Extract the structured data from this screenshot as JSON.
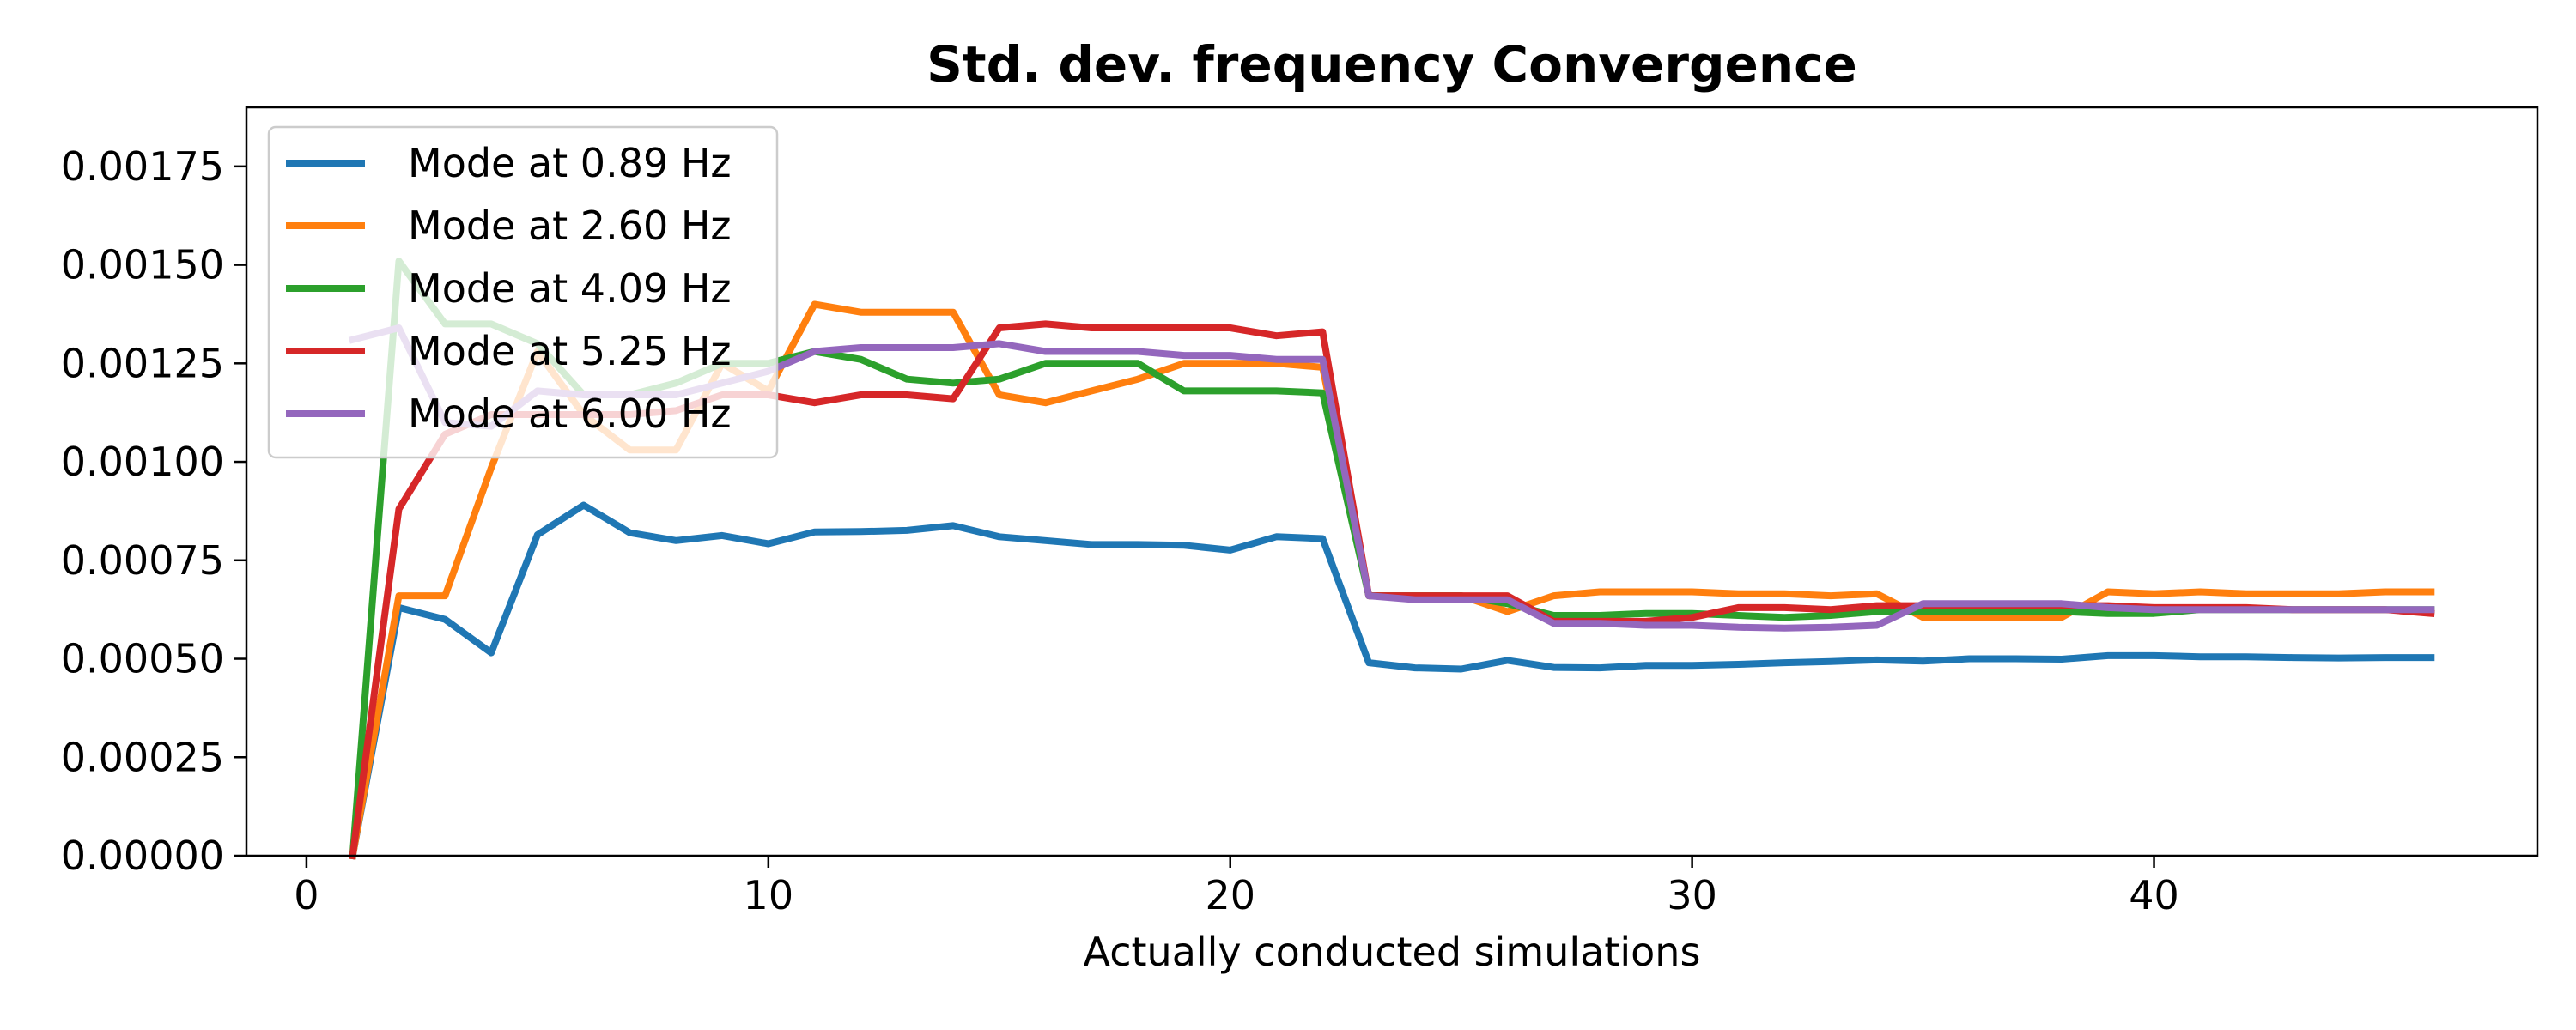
{
  "chart_data": {
    "type": "line",
    "title": "Std. dev. frequency Convergence",
    "xlabel": "Actually conducted simulations",
    "ylabel": "",
    "xlim": [
      -1.3,
      48.3
    ],
    "ylim": [
      0,
      0.0019
    ],
    "xticks": [
      0,
      10,
      20,
      30,
      40
    ],
    "yticks": [
      0.0,
      0.00025,
      0.0005,
      0.00075,
      0.001,
      0.00125,
      0.0015,
      0.00175
    ],
    "xtick_labels": [
      "0",
      "10",
      "20",
      "30",
      "40"
    ],
    "ytick_labels": [
      "0.00000",
      "0.00025",
      "0.00050",
      "0.00075",
      "0.00100",
      "0.00125",
      "0.00150",
      "0.00175"
    ],
    "grid": false,
    "legend_position": "upper-left",
    "x": [
      1,
      2,
      3,
      4,
      5,
      6,
      7,
      8,
      9,
      10,
      11,
      12,
      13,
      14,
      15,
      16,
      17,
      18,
      19,
      20,
      21,
      22,
      23,
      24,
      25,
      26,
      27,
      28,
      29,
      30,
      31,
      32,
      33,
      34,
      35,
      36,
      37,
      38,
      39,
      40,
      41,
      42,
      43,
      44,
      45,
      46
    ],
    "series": [
      {
        "name": "Mode at 0.89 Hz",
        "color": "#1f77b4",
        "values": [
          0.0,
          0.00063,
          0.0006,
          0.000515,
          0.000815,
          0.00089,
          0.00082,
          0.0008,
          0.000813,
          0.000792,
          0.000822,
          0.000823,
          0.000826,
          0.000838,
          0.00081,
          0.0008,
          0.00079,
          0.00079,
          0.000788,
          0.000776,
          0.00081,
          0.000805,
          0.00049,
          0.000477,
          0.000474,
          0.000496,
          0.000478,
          0.000477,
          0.000483,
          0.000483,
          0.000486,
          0.00049,
          0.000493,
          0.000497,
          0.000494,
          0.0005,
          0.0005,
          0.000499,
          0.000508,
          0.000508,
          0.000505,
          0.000505,
          0.000503,
          0.000502,
          0.000503,
          0.000503
        ]
      },
      {
        "name": "Mode at 2.60 Hz",
        "color": "#ff7f0e",
        "values": [
          0.0,
          0.00066,
          0.00066,
          0.000985,
          0.00128,
          0.00112,
          0.00103,
          0.00103,
          0.00125,
          0.00118,
          0.0014,
          0.00138,
          0.00138,
          0.00138,
          0.00117,
          0.00115,
          0.00118,
          0.00121,
          0.00125,
          0.00125,
          0.00125,
          0.00124,
          0.00066,
          0.00066,
          0.00066,
          0.00062,
          0.00066,
          0.00067,
          0.00067,
          0.00067,
          0.000665,
          0.000665,
          0.00066,
          0.000665,
          0.000605,
          0.000605,
          0.000605,
          0.000605,
          0.00067,
          0.000665,
          0.00067,
          0.000665,
          0.000665,
          0.000665,
          0.00067,
          0.00067
        ]
      },
      {
        "name": "Mode at 4.09 Hz",
        "color": "#2ca02c",
        "values": [
          0.0,
          0.00151,
          0.00135,
          0.00135,
          0.0013,
          0.00117,
          0.00117,
          0.0012,
          0.00125,
          0.00125,
          0.00128,
          0.00126,
          0.00121,
          0.0012,
          0.00121,
          0.00125,
          0.00125,
          0.00125,
          0.00118,
          0.00118,
          0.00118,
          0.001175,
          0.00066,
          0.00066,
          0.00066,
          0.00064,
          0.00061,
          0.00061,
          0.000615,
          0.000615,
          0.00061,
          0.000605,
          0.00061,
          0.00062,
          0.00062,
          0.00062,
          0.00062,
          0.00062,
          0.000615,
          0.000615,
          0.000625,
          0.000625,
          0.000625,
          0.000625,
          0.000625,
          0.000625
        ]
      },
      {
        "name": "Mode at 5.25 Hz",
        "color": "#d62728",
        "values": [
          0.0,
          0.00088,
          0.00107,
          0.00112,
          0.00112,
          0.00112,
          0.00112,
          0.00113,
          0.00117,
          0.00117,
          0.00115,
          0.00117,
          0.00117,
          0.00116,
          0.00134,
          0.00135,
          0.00134,
          0.00134,
          0.00134,
          0.00134,
          0.00132,
          0.00133,
          0.00066,
          0.00066,
          0.00066,
          0.00066,
          0.000595,
          0.000595,
          0.000595,
          0.000605,
          0.00063,
          0.00063,
          0.000625,
          0.000635,
          0.000635,
          0.000635,
          0.000635,
          0.000635,
          0.000635,
          0.00063,
          0.00063,
          0.00063,
          0.000625,
          0.000625,
          0.000625,
          0.000615
        ]
      },
      {
        "name": "Mode at 6.00 Hz",
        "color": "#9467bd",
        "values": [
          0.00131,
          0.00134,
          0.0011,
          0.00109,
          0.00118,
          0.00117,
          0.00117,
          0.00117,
          0.0012,
          0.00123,
          0.00128,
          0.00129,
          0.00129,
          0.00129,
          0.0013,
          0.00128,
          0.00128,
          0.00128,
          0.00127,
          0.00127,
          0.00126,
          0.00126,
          0.00066,
          0.00065,
          0.00065,
          0.00065,
          0.00059,
          0.00059,
          0.000585,
          0.000585,
          0.00058,
          0.000578,
          0.00058,
          0.000585,
          0.00064,
          0.00064,
          0.00064,
          0.00064,
          0.00063,
          0.000625,
          0.000625,
          0.000625,
          0.000625,
          0.000625,
          0.000625,
          0.000625
        ]
      }
    ]
  }
}
